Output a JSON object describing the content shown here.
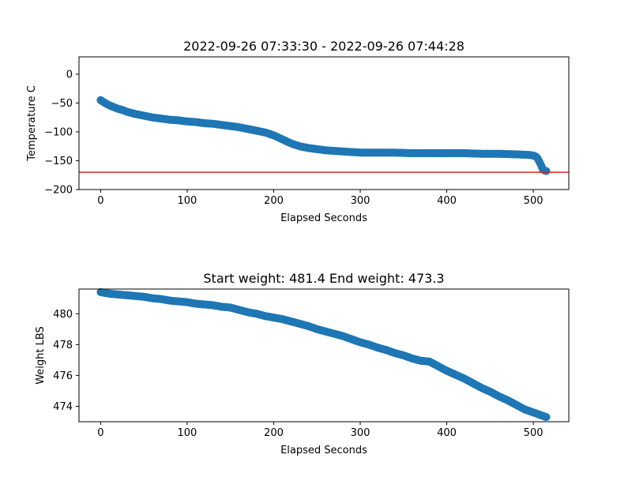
{
  "chart_data": [
    {
      "type": "scatter",
      "title": "2022-09-26 07:33:30 - 2022-09-26 07:44:28",
      "xlabel": "Elapsed Seconds",
      "ylabel": "Temperature C",
      "xlim": [
        -25,
        541
      ],
      "ylim": [
        -200,
        30
      ],
      "xticks": [
        0,
        100,
        200,
        300,
        400,
        500
      ],
      "yticks": [
        -200,
        -150,
        -100,
        -50,
        0
      ],
      "ytick_labels": [
        "−200",
        "−150",
        "−100",
        "−50",
        "0"
      ],
      "grid": false,
      "marker_color": "#1f77b4",
      "reference_line": {
        "y": -170,
        "color": "#d62728"
      },
      "x": [
        0,
        5,
        10,
        15,
        20,
        25,
        30,
        40,
        50,
        60,
        70,
        80,
        90,
        100,
        110,
        120,
        130,
        140,
        150,
        160,
        170,
        180,
        190,
        200,
        210,
        220,
        230,
        240,
        250,
        260,
        270,
        280,
        290,
        300,
        320,
        340,
        360,
        380,
        400,
        420,
        440,
        460,
        480,
        495,
        500,
        503,
        505,
        507,
        509,
        511,
        513,
        515
      ],
      "y": [
        -45,
        -50,
        -54,
        -57,
        -60,
        -62,
        -65,
        -69,
        -72,
        -75,
        -77,
        -79,
        -80,
        -82,
        -83,
        -85,
        -86,
        -88,
        -90,
        -92,
        -95,
        -98,
        -101,
        -106,
        -113,
        -120,
        -125,
        -128,
        -130,
        -132,
        -133,
        -134,
        -135,
        -136,
        -136,
        -136,
        -137,
        -137,
        -137,
        -137,
        -138,
        -138,
        -139,
        -140,
        -141,
        -143,
        -146,
        -152,
        -158,
        -165,
        -167,
        -168
      ]
    },
    {
      "type": "scatter",
      "title": "Start weight: 481.4 End weight: 473.3",
      "xlabel": "Elapsed Seconds",
      "ylabel": "Weight LBS",
      "xlim": [
        -25,
        541
      ],
      "ylim": [
        473,
        481.6
      ],
      "xticks": [
        0,
        100,
        200,
        300,
        400,
        500
      ],
      "yticks": [
        474,
        476,
        478,
        480
      ],
      "grid": false,
      "marker_color": "#1f77b4",
      "x": [
        0,
        10,
        20,
        30,
        40,
        50,
        60,
        70,
        80,
        90,
        100,
        110,
        120,
        130,
        140,
        150,
        160,
        170,
        180,
        190,
        200,
        210,
        220,
        230,
        240,
        250,
        260,
        270,
        280,
        290,
        300,
        310,
        320,
        330,
        340,
        350,
        360,
        370,
        380,
        390,
        400,
        410,
        420,
        430,
        440,
        450,
        460,
        470,
        480,
        490,
        500,
        510,
        515
      ],
      "y": [
        481.4,
        481.3,
        481.25,
        481.2,
        481.15,
        481.1,
        481.0,
        480.95,
        480.85,
        480.8,
        480.75,
        480.65,
        480.6,
        480.55,
        480.45,
        480.4,
        480.25,
        480.1,
        480.0,
        479.85,
        479.75,
        479.65,
        479.5,
        479.35,
        479.2,
        479.0,
        478.85,
        478.7,
        478.55,
        478.35,
        478.15,
        478.0,
        477.8,
        477.65,
        477.45,
        477.3,
        477.1,
        476.95,
        476.9,
        476.6,
        476.3,
        476.05,
        475.8,
        475.5,
        475.2,
        474.95,
        474.65,
        474.4,
        474.1,
        473.8,
        473.6,
        473.4,
        473.3
      ]
    }
  ]
}
